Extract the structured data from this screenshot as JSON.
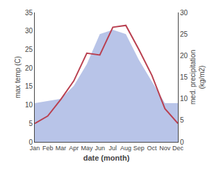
{
  "chart_data": {
    "type": "line",
    "categories": [
      "Jan",
      "Feb",
      "Mar",
      "Apr",
      "May",
      "Jun",
      "Jul",
      "Aug",
      "Sep",
      "Oct",
      "Nov",
      "Dec"
    ],
    "series": [
      {
        "type": "area",
        "axis": "y2",
        "color": "#b8c4e8",
        "values": [
          9.0,
          9.5,
          10.0,
          13.0,
          18.0,
          25.0,
          26.0,
          25.0,
          19.0,
          14.0,
          9.0,
          9.0
        ]
      },
      {
        "type": "line",
        "color": "#b94050",
        "values": [
          5.0,
          7.0,
          11.5,
          16.5,
          24.0,
          23.5,
          31.0,
          31.5,
          25.0,
          18.0,
          9.0,
          5.0
        ]
      }
    ],
    "xlabel": "date (month)",
    "ylabel": "max temp (C)",
    "y2label": "med. precipitation\n(kg/m2)",
    "ylim": [
      0,
      35
    ],
    "yticks": [
      0,
      5,
      10,
      15,
      20,
      25,
      30,
      35
    ],
    "y2lim": [
      0,
      30
    ],
    "y2ticks": [
      0,
      5,
      10,
      15,
      20,
      25,
      30
    ],
    "grid": false
  }
}
